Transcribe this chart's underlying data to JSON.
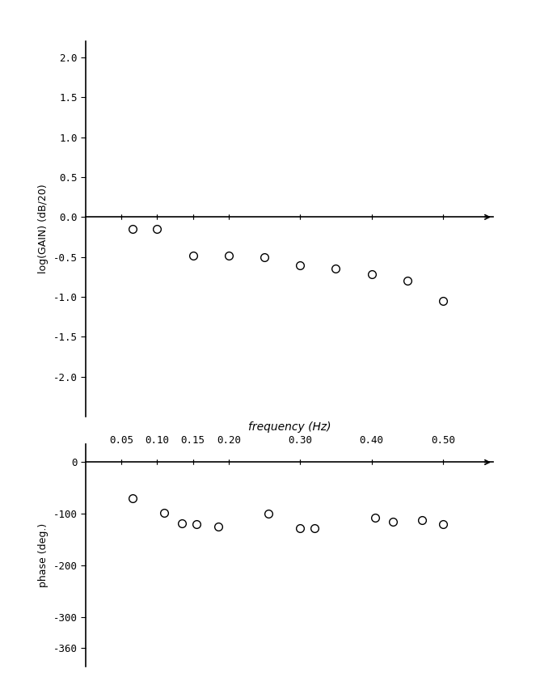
{
  "gain_freq": [
    0.065,
    0.1,
    0.15,
    0.2,
    0.25,
    0.3,
    0.35,
    0.4,
    0.45,
    0.5
  ],
  "gain_vals": [
    -0.15,
    -0.15,
    -0.48,
    -0.48,
    -0.5,
    -0.6,
    -0.65,
    -0.72,
    -0.8,
    -1.05
  ],
  "phase_freq": [
    0.065,
    0.11,
    0.135,
    0.155,
    0.185,
    0.255,
    0.3,
    0.32,
    0.405,
    0.43,
    0.47,
    0.5
  ],
  "phase_vals": [
    -70,
    -98,
    -118,
    -120,
    -125,
    -100,
    -128,
    -128,
    -108,
    -115,
    -112,
    -120
  ],
  "gain_ylim": [
    -2.5,
    2.2
  ],
  "gain_yticks": [
    -2.0,
    -1.5,
    -1.0,
    -0.5,
    0.0,
    0.5,
    1.0,
    1.5,
    2.0
  ],
  "phase_ylim": [
    -395,
    35
  ],
  "phase_yticks": [
    0,
    -100,
    -200,
    -300,
    -360
  ],
  "freq_xlim": [
    0.0,
    0.57
  ],
  "freq_xticks": [
    0.05,
    0.1,
    0.15,
    0.2,
    0.3,
    0.4,
    0.5
  ],
  "xtick_labels": [
    "0.05",
    "0.10",
    "0.15",
    "0.20",
    "0.30",
    "0.40",
    "0.50"
  ],
  "xlabel": "frequency (Hz)",
  "gain_ylabel": "log(GAIN) (dB/20)",
  "phase_ylabel": "phase (deg.)",
  "marker_size": 7,
  "marker_facecolor": "white",
  "marker_edgecolor": "black",
  "marker_linewidth": 1.0,
  "bg_color": "white",
  "axis_linewidth": 1.2
}
